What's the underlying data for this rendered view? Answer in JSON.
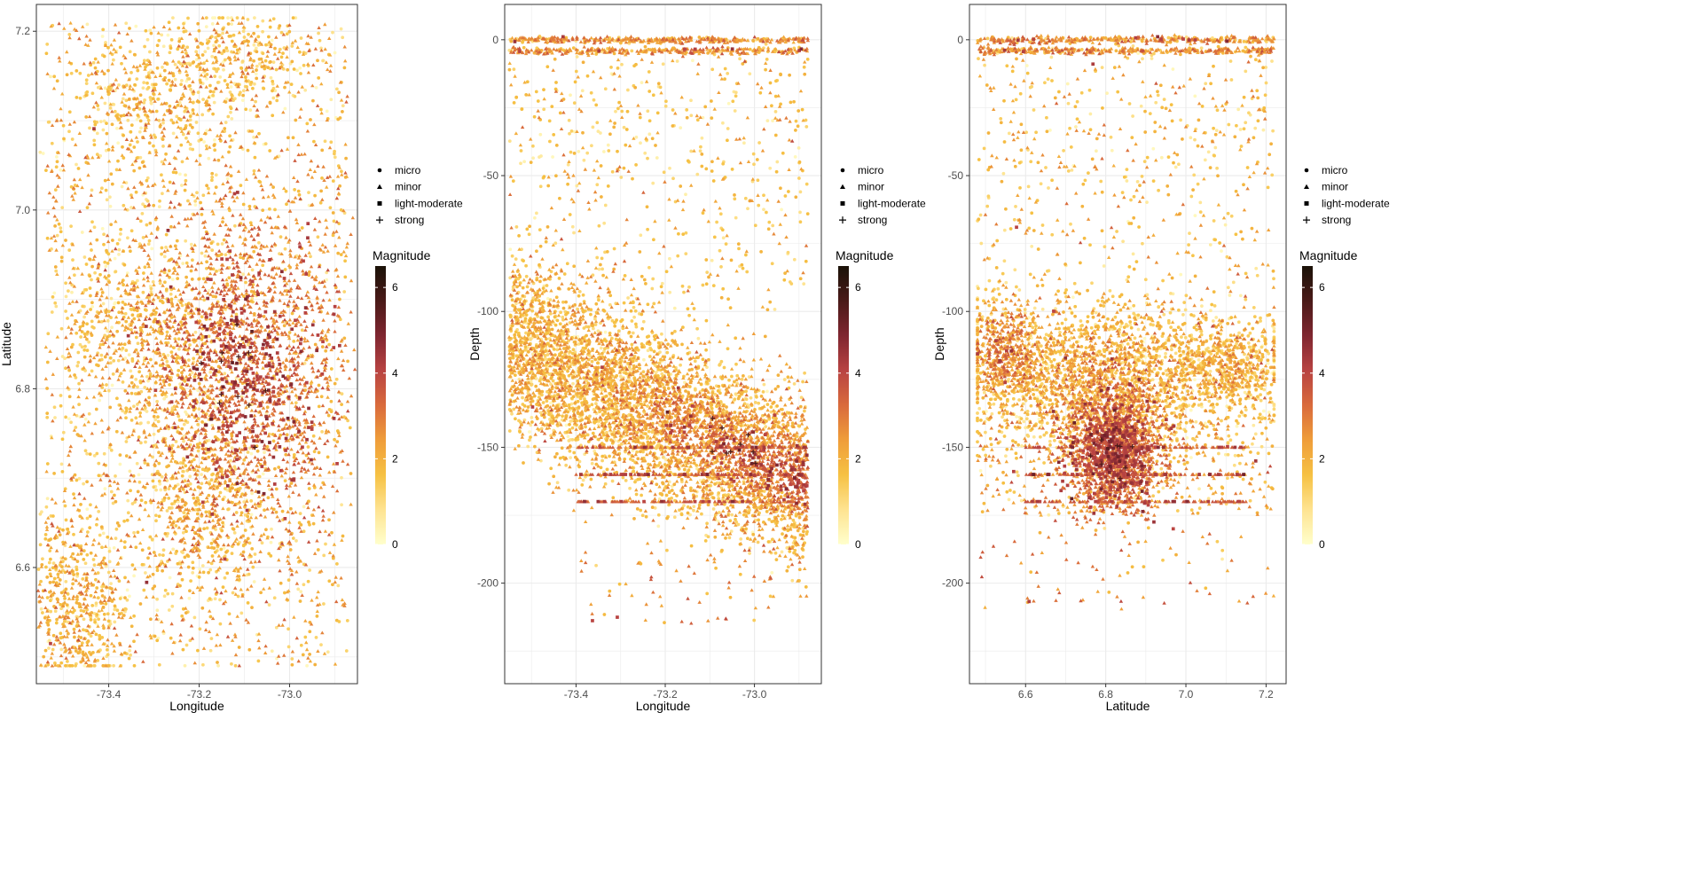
{
  "palette": {
    "low": "#ffffcc",
    "stops": [
      "#ffffcc",
      "#fee391",
      "#f6c143",
      "#ef9d3a",
      "#d96a3c",
      "#b84342",
      "#7f2630",
      "#4a1a18",
      "#1a1208"
    ],
    "grid": "#ebebeb",
    "panel_border": "#333333"
  },
  "legend": {
    "shape_labels": [
      "micro",
      "minor",
      "light-moderate",
      "strong"
    ],
    "shape_icons": [
      "circle-icon",
      "triangle-icon",
      "square-icon",
      "cross-icon"
    ],
    "color_title": "Magnitude",
    "color_ticks": [
      "0",
      "2",
      "4",
      "6"
    ],
    "color_range": [
      0,
      6.5
    ]
  },
  "chart_data": [
    {
      "type": "scatter",
      "xlabel": "Longitude",
      "ylabel": "Latitude",
      "xlim": [
        -73.56,
        -72.85
      ],
      "ylim": [
        6.47,
        7.23
      ],
      "xticks": [
        "-73.4",
        "-73.2",
        "-73.0"
      ],
      "yticks": [
        "6.6",
        "6.8",
        "7.0",
        "7.2"
      ],
      "color": "Magnitude",
      "shape": "magnitude class",
      "clusters": [
        {
          "center": [
            -73.1,
            6.82
          ],
          "spread": [
            0.11,
            0.09
          ],
          "magnitude": 3.6,
          "share": 0.32
        },
        {
          "center": [
            -73.32,
            6.86
          ],
          "spread": [
            0.1,
            0.06
          ],
          "magnitude": 2.1,
          "share": 0.1
        },
        {
          "center": [
            -73.47,
            6.56
          ],
          "spread": [
            0.06,
            0.05
          ],
          "magnitude": 2.2,
          "share": 0.08
        },
        {
          "center": [
            -73.2,
            6.67
          ],
          "spread": [
            0.07,
            0.06
          ],
          "magnitude": 2.0,
          "share": 0.08
        },
        {
          "center": [
            -73.3,
            7.12
          ],
          "spread": [
            0.09,
            0.04
          ],
          "magnitude": 2.0,
          "share": 0.06
        },
        {
          "center": [
            -73.1,
            7.17
          ],
          "spread": [
            0.08,
            0.03
          ],
          "magnitude": 2.0,
          "share": 0.04
        }
      ],
      "background_share": 0.32
    },
    {
      "type": "scatter",
      "xlabel": "Longitude",
      "ylabel": "Depth",
      "xlim": [
        -73.56,
        -72.85
      ],
      "ylim": [
        -237,
        13
      ],
      "xticks": [
        "-73.4",
        "-73.2",
        "-73.0"
      ],
      "yticks": [
        "0",
        "-50",
        "-100",
        "-150",
        "-200"
      ],
      "color": "Magnitude",
      "shape": "magnitude class",
      "trend": {
        "x": [
          -73.55,
          -73.25,
          -73.0,
          -72.88
        ],
        "depth": [
          -112,
          -135,
          -155,
          -162
        ]
      },
      "surface_band_depth": [
        0,
        -4
      ],
      "fixed_depth_rows": [
        -150,
        -160,
        -170
      ]
    },
    {
      "type": "scatter",
      "xlabel": "Latitude",
      "ylabel": "Depth",
      "xlim": [
        6.46,
        7.25
      ],
      "ylim": [
        -237,
        13
      ],
      "xticks": [
        "6.6",
        "6.8",
        "7.0",
        "7.2"
      ],
      "yticks": [
        "0",
        "-50",
        "-100",
        "-150",
        "-200"
      ],
      "color": "Magnitude",
      "shape": "magnitude class",
      "clusters": [
        {
          "center": [
            6.82,
            -152
          ],
          "spread": [
            0.06,
            11
          ],
          "magnitude": 3.8,
          "share": 0.3
        },
        {
          "center": [
            6.55,
            -115
          ],
          "spread": [
            0.05,
            10
          ],
          "magnitude": 2.8,
          "share": 0.1
        },
        {
          "center": [
            6.8,
            -125
          ],
          "spread": [
            0.15,
            14
          ],
          "magnitude": 2.3,
          "share": 0.3
        },
        {
          "center": [
            7.1,
            -120
          ],
          "spread": [
            0.07,
            8
          ],
          "magnitude": 2.2,
          "share": 0.1
        }
      ],
      "surface_band_depth": [
        0,
        -4
      ],
      "fixed_depth_rows": [
        -150,
        -160,
        -170
      ]
    }
  ]
}
